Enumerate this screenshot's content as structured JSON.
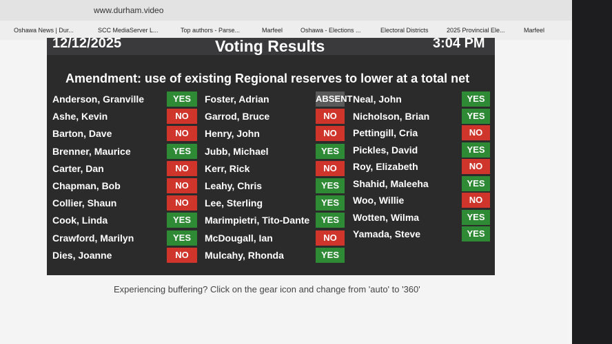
{
  "browser": {
    "url": "www.durham.video",
    "bookmarks": [
      "Oshawa News | Dur...",
      "SCC MediaServer L...",
      "Top authors - Parse...",
      "Marfeel",
      "Oshawa - Elections ...",
      "Electoral Districts",
      "2025 Provincial Ele...",
      "Marfeel"
    ]
  },
  "video": {
    "date": "12/12/2025",
    "title": "Voting Results",
    "time": "3:04 PM",
    "motion": "Amendment: use of existing Regional reserves to lower at a total net",
    "vote_colors": {
      "YES": "#2f8a36",
      "NO": "#d0352b",
      "ABSENT": "#5a5a5a"
    },
    "columns": [
      [
        [
          "Anderson, Granville",
          "YES"
        ],
        [
          "Ashe, Kevin",
          "NO"
        ],
        [
          "Barton, Dave",
          "NO"
        ],
        [
          "Brenner, Maurice",
          "YES"
        ],
        [
          "Carter, Dan",
          "NO"
        ],
        [
          "Chapman, Bob",
          "NO"
        ],
        [
          "Collier, Shaun",
          "NO"
        ],
        [
          "Cook, Linda",
          "YES"
        ],
        [
          "Crawford, Marilyn",
          "YES"
        ],
        [
          "Dies, Joanne",
          "NO"
        ]
      ],
      [
        [
          "Foster, Adrian",
          "ABSENT"
        ],
        [
          "Garrod, Bruce",
          "NO"
        ],
        [
          "Henry, John",
          "NO"
        ],
        [
          "Jubb, Michael",
          "YES"
        ],
        [
          "Kerr, Rick",
          "NO"
        ],
        [
          "Leahy, Chris",
          "YES"
        ],
        [
          "Lee, Sterling",
          "YES"
        ],
        [
          "Marimpietri, Tito-Dante",
          "YES"
        ],
        [
          "McDougall, Ian",
          "NO"
        ],
        [
          "Mulcahy, Rhonda",
          "YES"
        ]
      ],
      [
        [
          "Neal, John",
          "YES"
        ],
        [
          "Nicholson, Brian",
          "YES"
        ],
        [
          "Pettingill, Cria",
          "NO"
        ],
        [
          "Pickles, David",
          "YES"
        ],
        [
          "Roy, Elizabeth",
          "NO"
        ],
        [
          "Shahid, Maleeha",
          "YES"
        ],
        [
          "Woo, Willie",
          "NO"
        ],
        [
          "Wotten, Wilma",
          "YES"
        ],
        [
          "Yamada, Steve",
          "YES"
        ]
      ]
    ]
  },
  "caption": "Experiencing buffering? Click on the gear icon and change from 'auto' to '360'"
}
